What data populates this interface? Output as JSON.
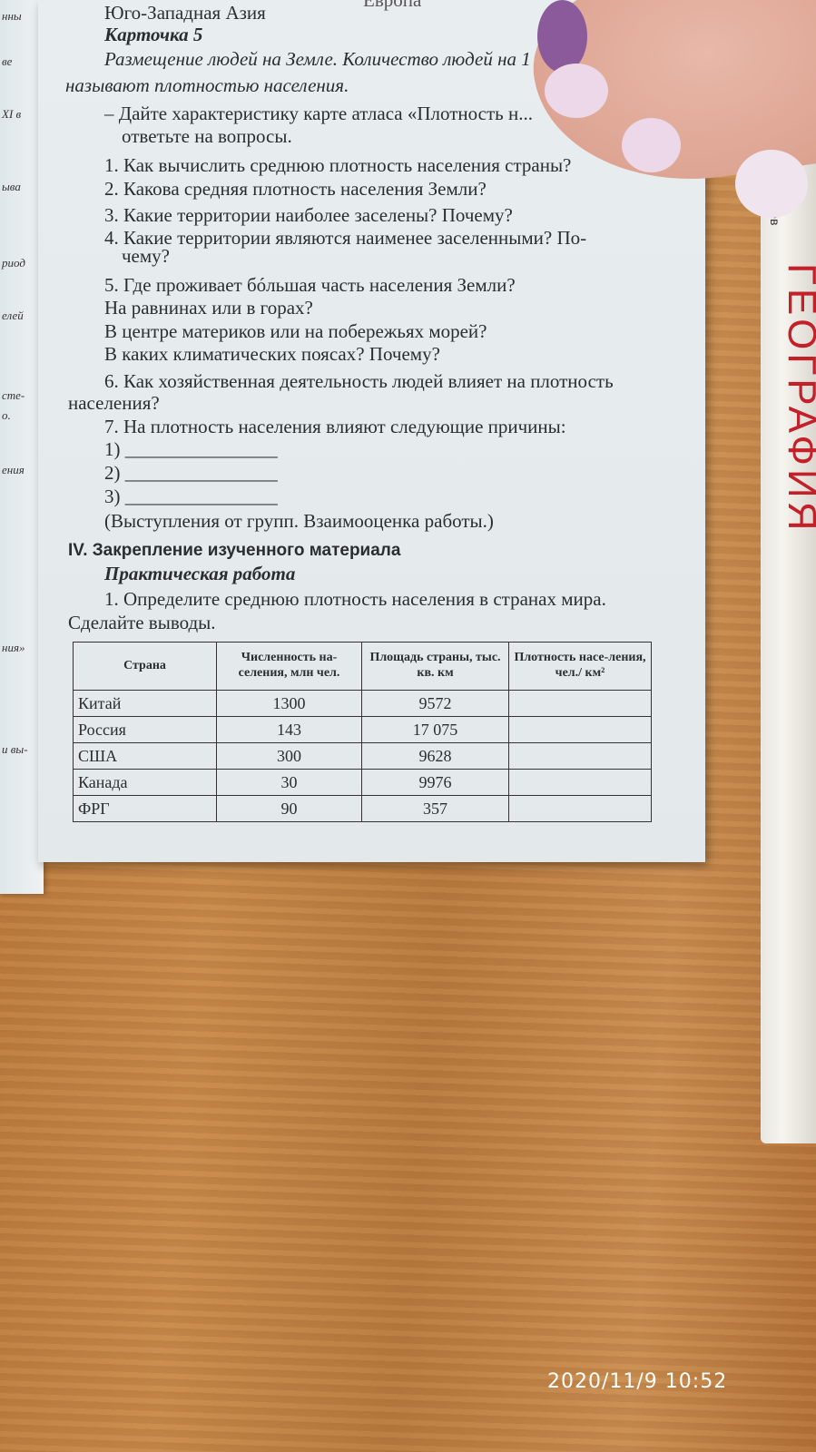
{
  "left_page_fragments": [
    "нны",
    "ве",
    "XI в",
    "ыва",
    "риод",
    "елей",
    "сте-",
    "о.",
    "ения",
    "ния»",
    "и вы-"
  ],
  "spine": {
    "author": "ненев",
    "title": "ГЕОГРАФИЯ"
  },
  "page": {
    "top_fragment": "Европа",
    "lines": [
      "Юго-Западная Азия",
      "Карточка 5",
      "Размещение людей на Земле. Количество людей на 1",
      "называют плотностью населения.",
      "– Дайте характеристику карте атласа «Плотность н...",
      "ответьте на вопросы.",
      "1. Как вычислить среднюю плотность населения страны?",
      "2. Какова средняя плотность населения Земли?",
      "3. Какие территории наиболее заселены? Почему?",
      "4. Какие территории являются наименее заселенными? По-",
      "чему?",
      "5. Где проживает бóльшая часть населения Земли?",
      "На равнинах или в горах?",
      "В центре материков или на побережьях морей?",
      "В каких климатических поясах? Почему?",
      "6. Как хозяйственная деятельность людей влияет на плотность",
      "населения?",
      "7. На плотность населения влияют следующие причины:",
      "1) ________________",
      "2) ________________",
      "3) ________________",
      "(Выступления от групп. Взаимооценка работы.)",
      "IV. Закрепление изученного материала",
      "Практическая работа",
      "1. Определите среднюю плотность населения в странах мира.",
      "Сделайте выводы."
    ],
    "table": {
      "headers": [
        "Страна",
        "Численность на-селения, млн чел.",
        "Площадь страны, тыс. кв. км",
        "Плотность насе-ления, чел./ км²"
      ],
      "rows": [
        [
          "Китай",
          "1300",
          "9572",
          ""
        ],
        [
          "Россия",
          "143",
          "17 075",
          ""
        ],
        [
          "США",
          "300",
          "9628",
          ""
        ],
        [
          "Канада",
          "30",
          "9976",
          ""
        ],
        [
          "ФРГ",
          "90",
          "357",
          ""
        ]
      ]
    }
  },
  "timestamp": "2020/11/9  10:52"
}
